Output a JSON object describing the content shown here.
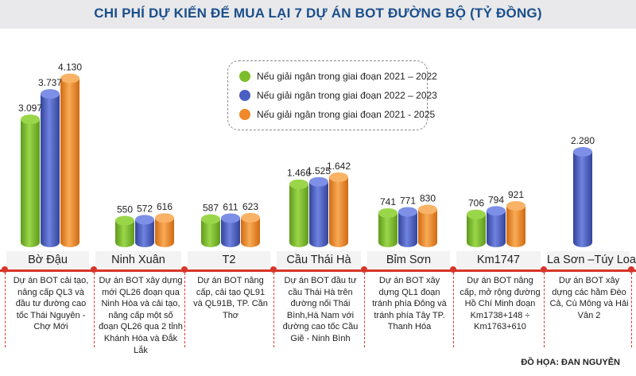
{
  "title": "CHI PHÍ DỰ KIẾN ĐỂ MUA LẠI 7 DỰ ÁN BOT ĐƯỜNG BỘ (TỶ ĐỒNG)",
  "colors": {
    "green": "#7cbd2c",
    "blue": "#4a5fc1",
    "orange": "#f0892a",
    "accent_red": "#d8352a",
    "title_blue": "#1a4f8c"
  },
  "legend": [
    {
      "label": "Nếu giải ngân trong giai đoạn 2021 – 2022",
      "color": "#7cbd2c"
    },
    {
      "label": "Nếu giải ngân trong giai đoạn 2022 – 2023",
      "color": "#4a5fc1"
    },
    {
      "label": "Nếu giải ngân trong giai đoạn 2021 - 2025",
      "color": "#f0892a"
    }
  ],
  "chart_data": {
    "type": "bar",
    "title": "CHI PHÍ DỰ KIẾN ĐỂ MUA LẠI 7 DỰ ÁN BOT ĐƯỜNG BỘ (TỶ ĐỒNG)",
    "categories": [
      "Bờ Đậu",
      "Ninh Xuân",
      "T2",
      "Cầu Thái Hà",
      "Bỉm Sơn",
      "Km1747",
      "La Sơn –Túy Loan"
    ],
    "series": [
      {
        "name": "Nếu giải ngân trong giai đoạn 2021 – 2022",
        "values": [
          3097,
          550,
          587,
          1466,
          741,
          706,
          null
        ]
      },
      {
        "name": "Nếu giải ngân trong giai đoạn 2022 – 2023",
        "values": [
          3737,
          572,
          611,
          1525,
          771,
          794,
          2280
        ]
      },
      {
        "name": "Nếu giải ngân trong giai đoạn 2021 - 2025",
        "values": [
          4130,
          616,
          623,
          1642,
          830,
          921,
          null
        ]
      }
    ],
    "value_labels": [
      [
        "3.097",
        "3.737",
        "4.130"
      ],
      [
        "550",
        "572",
        "616"
      ],
      [
        "587",
        "611",
        "623"
      ],
      [
        "1.466",
        "1.525",
        "1.642"
      ],
      [
        "741",
        "771",
        "830"
      ],
      [
        "706",
        "794",
        "921"
      ],
      [
        "",
        "2.280",
        ""
      ]
    ],
    "xlabel": "",
    "ylabel": "",
    "grid": false,
    "legend_position": "top-center"
  },
  "categories_info": [
    {
      "name": "Bờ Đậu",
      "description": "Dự án BOT cải tạo, nâng cấp QL3 và đầu tư đường cao tốc Thái Nguyên - Chợ Mới"
    },
    {
      "name": "Ninh Xuân",
      "description": "Dự án BOT xây dựng mới QL26 đoạn qua Ninh Hòa và cải tạo, nâng cấp một số đoạn QL26 qua 2 tỉnh Khánh Hòa và Đắk Lắk"
    },
    {
      "name": "T2",
      "description": "Dự án BOT nâng cấp, cải tạo QL91 và QL91B, TP. Cần Thơ"
    },
    {
      "name": "Cầu Thái Hà",
      "description": "Dự án BOT đầu tư cầu Thái Hà trên đường nối Thái Bình,Hà Nam với đường cao tốc Cầu Giẽ - Ninh Bình"
    },
    {
      "name": "Bỉm Sơn",
      "description": "Dự án BOT xây dựng QL1 đoạn tránh phía Đông và tránh phía Tây TP. Thanh Hóa"
    },
    {
      "name": "Km1747",
      "description": "Dự án BOT nâng cấp, mở rộng đường Hồ Chí Minh đoạn Km1738+148 ÷ Km1763+610"
    },
    {
      "name": "La Sơn –Túy Loan",
      "description": "Dự án BOT xây dựng các hầm Đèo Cả, Cù Mông và Hải Vân 2"
    }
  ],
  "credit": "ĐỒ HỌA: ĐAN NGUYỄN"
}
